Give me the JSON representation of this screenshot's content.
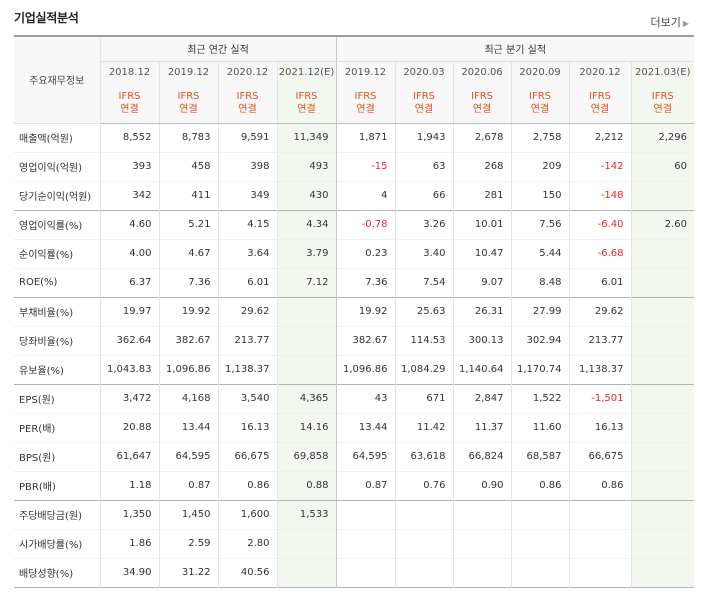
{
  "header": {
    "title": "기업실적분석",
    "more_label": "더보기",
    "more_arrow": "▶"
  },
  "table": {
    "row_label_header": "주요재무정보",
    "group_annual": "최근 연간 실적",
    "group_quarterly": "최근 분기 실적",
    "periods": [
      "2018.12",
      "2019.12",
      "2020.12",
      "2021.12(E)",
      "2019.12",
      "2020.03",
      "2020.06",
      "2020.09",
      "2020.12",
      "2021.03(E)"
    ],
    "ifrs_line1": "IFRS",
    "ifrs_line2": "연결",
    "rows": [
      {
        "label": "매출액(억원)",
        "values": [
          "8,552",
          "8,783",
          "9,591",
          "11,349",
          "1,871",
          "1,943",
          "2,678",
          "2,758",
          "2,212",
          "2,296"
        ]
      },
      {
        "label": "영업이익(억원)",
        "values": [
          "393",
          "458",
          "398",
          "493",
          "-15",
          "63",
          "268",
          "209",
          "-142",
          "60"
        ]
      },
      {
        "label": "당기순이익(억원)",
        "values": [
          "342",
          "411",
          "349",
          "430",
          "4",
          "66",
          "281",
          "150",
          "-148",
          ""
        ]
      },
      {
        "label": "영업이익률(%)",
        "values": [
          "4.60",
          "5.21",
          "4.15",
          "4.34",
          "-0.78",
          "3.26",
          "10.01",
          "7.56",
          "-6.40",
          "2.60"
        ]
      },
      {
        "label": "순이익률(%)",
        "values": [
          "4.00",
          "4.67",
          "3.64",
          "3.79",
          "0.23",
          "3.40",
          "10.47",
          "5.44",
          "-6.68",
          ""
        ]
      },
      {
        "label": "ROE(%)",
        "values": [
          "6.37",
          "7.36",
          "6.01",
          "7.12",
          "7.36",
          "7.54",
          "9.07",
          "8.48",
          "6.01",
          ""
        ]
      },
      {
        "label": "부채비율(%)",
        "values": [
          "19.97",
          "19.92",
          "29.62",
          "",
          "19.92",
          "25.63",
          "26.31",
          "27.99",
          "29.62",
          ""
        ]
      },
      {
        "label": "당좌비율(%)",
        "values": [
          "362.64",
          "382.67",
          "213.77",
          "",
          "382.67",
          "114.53",
          "300.13",
          "302.94",
          "213.77",
          ""
        ]
      },
      {
        "label": "유보율(%)",
        "values": [
          "1,043.83",
          "1,096.86",
          "1,138.37",
          "",
          "1,096.86",
          "1,084.29",
          "1,140.64",
          "1,170.74",
          "1,138.37",
          ""
        ]
      },
      {
        "label": "EPS(원)",
        "values": [
          "3,472",
          "4,168",
          "3,540",
          "4,365",
          "43",
          "671",
          "2,847",
          "1,522",
          "-1,501",
          ""
        ]
      },
      {
        "label": "PER(배)",
        "values": [
          "20.88",
          "13.44",
          "16.13",
          "14.16",
          "13.44",
          "11.42",
          "11.37",
          "11.60",
          "16.13",
          ""
        ]
      },
      {
        "label": "BPS(원)",
        "values": [
          "61,647",
          "64,595",
          "66,675",
          "69,858",
          "64,595",
          "63,618",
          "66,824",
          "68,587",
          "66,675",
          ""
        ]
      },
      {
        "label": "PBR(배)",
        "values": [
          "1.18",
          "0.87",
          "0.86",
          "0.88",
          "0.87",
          "0.76",
          "0.90",
          "0.86",
          "0.86",
          ""
        ]
      },
      {
        "label": "주당배당금(원)",
        "values": [
          "1,350",
          "1,450",
          "1,600",
          "1,533",
          "",
          "",
          "",
          "",
          "",
          ""
        ]
      },
      {
        "label": "시가배당률(%)",
        "values": [
          "1.86",
          "2.59",
          "2.80",
          "",
          "",
          "",
          "",
          "",
          "",
          ""
        ]
      },
      {
        "label": "배당성향(%)",
        "values": [
          "34.90",
          "31.22",
          "40.56",
          "",
          "",
          "",
          "",
          "",
          "",
          ""
        ]
      }
    ]
  },
  "colors": {
    "negative": "#e52a2a",
    "ifrs": "#e0511f",
    "estimate_bg": "#f2f8f0"
  }
}
